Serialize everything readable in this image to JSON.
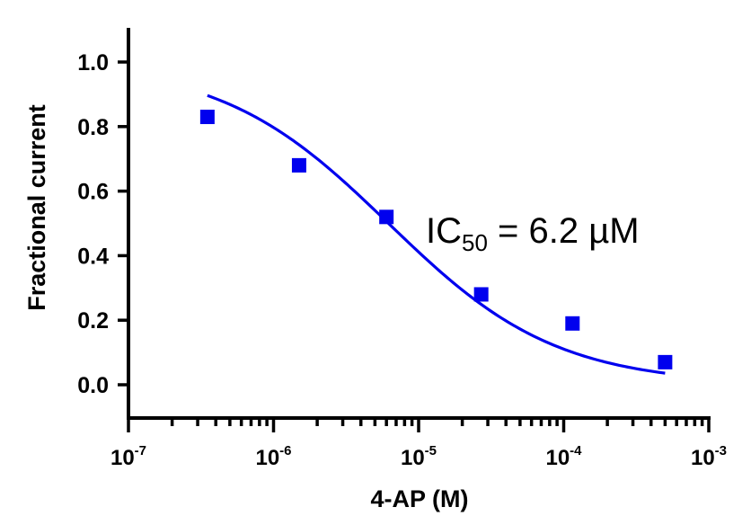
{
  "chart_data": {
    "type": "scatter",
    "xscale": "log",
    "xlabel": "4-AP (M)",
    "ylabel": "Fractional current",
    "xlim": [
      1e-07,
      0.001
    ],
    "ylim": [
      -0.1,
      1.1
    ],
    "xticks": [
      {
        "base": "10",
        "exp": "-7"
      },
      {
        "base": "10",
        "exp": "-6"
      },
      {
        "base": "10",
        "exp": "-5"
      },
      {
        "base": "10",
        "exp": "-4"
      },
      {
        "base": "10",
        "exp": "-3"
      }
    ],
    "yticks": [
      "0.0",
      "0.2",
      "0.4",
      "0.6",
      "0.8",
      "1.0"
    ],
    "series": [
      {
        "x": [
          3.5e-07,
          1.5e-06,
          6e-06,
          2.7e-05,
          0.000115,
          0.0005
        ],
        "y": [
          0.83,
          0.68,
          0.52,
          0.28,
          0.19,
          0.07
        ],
        "color": "#0000ee",
        "marker": "square"
      }
    ],
    "fit": {
      "model": "hill",
      "top": 1.0,
      "bottom": 0.0,
      "ic50": 6.2e-06,
      "hill_slope": 0.75,
      "x_range": [
        3.5e-07,
        0.0005
      ],
      "color": "#0000ee"
    },
    "annotation": {
      "text": "IC",
      "subscript": "50",
      "suffix": " = 6.2 µM"
    },
    "grid": false,
    "legend": "none"
  }
}
